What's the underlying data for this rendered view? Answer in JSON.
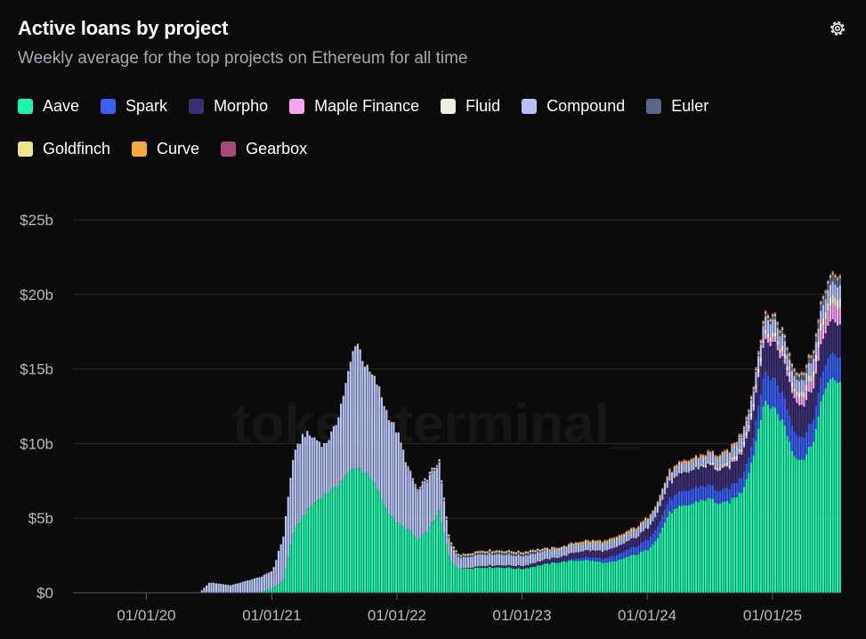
{
  "header": {
    "title": "Active loans by project",
    "subtitle": "Weekly average for the top projects on Ethereum for all time",
    "settings_icon": "gear-icon"
  },
  "watermark": "token terminal_",
  "colors": {
    "background": "#0b0b0c",
    "grid": "#2a2a2d",
    "text_muted": "#b9b9bd"
  },
  "legend": [
    {
      "name": "Aave",
      "color": "#1ef2ab"
    },
    {
      "name": "Spark",
      "color": "#3b5df0"
    },
    {
      "name": "Morpho",
      "color": "#3d2f73"
    },
    {
      "name": "Maple Finance",
      "color": "#f7a6f0"
    },
    {
      "name": "Fluid",
      "color": "#f3eee0"
    },
    {
      "name": "Compound",
      "color": "#b7c2f2"
    },
    {
      "name": "Euler",
      "color": "#5b6889"
    },
    {
      "name": "Goldfinch",
      "color": "#ede38a"
    },
    {
      "name": "Curve",
      "color": "#f7a93d"
    },
    {
      "name": "Gearbox",
      "color": "#a54a7a"
    }
  ],
  "chart_data": {
    "type": "bar",
    "stacked": true,
    "title": "Active loans by project",
    "subtitle": "Weekly average for the top projects on Ethereum for all time",
    "y_tick_labels": [
      "$0",
      "$5b",
      "$10b",
      "$15b",
      "$20b",
      "$25b"
    ],
    "y_ticks": [
      0,
      5,
      10,
      15,
      20,
      25
    ],
    "ylim": [
      0,
      25
    ],
    "y_unit": "$b",
    "x_tick_labels": [
      "01/01/20",
      "01/01/21",
      "01/01/22",
      "01/01/23",
      "01/01/24",
      "01/01/25"
    ],
    "x_ticks": [
      "2020-01-01",
      "2021-01-01",
      "2022-01-01",
      "2023-01-01",
      "2024-01-01",
      "2025-01-01"
    ],
    "x_range": [
      "2019-06-01",
      "2025-07-20"
    ],
    "grid": true,
    "legend_position": "top",
    "series_anchors": [
      {
        "name": "Aave",
        "points": [
          [
            "2020-01-01",
            0
          ],
          [
            "2020-11-01",
            0
          ],
          [
            "2020-12-01",
            0.05
          ],
          [
            "2021-01-01",
            0.3
          ],
          [
            "2021-02-01",
            0.8
          ],
          [
            "2021-03-01",
            4.0
          ],
          [
            "2021-04-01",
            5.2
          ],
          [
            "2021-05-01",
            6.0
          ],
          [
            "2021-06-01",
            6.6
          ],
          [
            "2021-07-01",
            7.0
          ],
          [
            "2021-08-01",
            7.8
          ],
          [
            "2021-09-01",
            8.5
          ],
          [
            "2021-10-01",
            8.0
          ],
          [
            "2021-11-01",
            7.0
          ],
          [
            "2021-12-01",
            5.5
          ],
          [
            "2022-01-01",
            4.6
          ],
          [
            "2022-02-01",
            4.2
          ],
          [
            "2022-03-01",
            3.5
          ],
          [
            "2022-04-01",
            4.2
          ],
          [
            "2022-05-01",
            5.5
          ],
          [
            "2022-06-01",
            2.2
          ],
          [
            "2022-07-01",
            1.6
          ],
          [
            "2022-09-01",
            1.7
          ],
          [
            "2022-11-01",
            1.7
          ],
          [
            "2023-01-01",
            1.6
          ],
          [
            "2023-03-01",
            1.9
          ],
          [
            "2023-05-01",
            2.1
          ],
          [
            "2023-07-01",
            2.2
          ],
          [
            "2023-09-01",
            2.0
          ],
          [
            "2023-10-01",
            2.1
          ],
          [
            "2023-11-01",
            2.4
          ],
          [
            "2023-12-01",
            2.6
          ],
          [
            "2024-01-01",
            2.9
          ],
          [
            "2024-02-01",
            3.8
          ],
          [
            "2024-03-01",
            5.3
          ],
          [
            "2024-04-01",
            5.7
          ],
          [
            "2024-05-01",
            5.9
          ],
          [
            "2024-06-01",
            6.2
          ],
          [
            "2024-07-01",
            6.3
          ],
          [
            "2024-08-01",
            5.9
          ],
          [
            "2024-09-01",
            6.2
          ],
          [
            "2024-10-01",
            6.8
          ],
          [
            "2024-11-01",
            9.0
          ],
          [
            "2024-12-01",
            12.6
          ],
          [
            "2025-01-01",
            12.5
          ],
          [
            "2025-02-01",
            11.3
          ],
          [
            "2025-03-01",
            9.2
          ],
          [
            "2025-04-01",
            9.0
          ],
          [
            "2025-05-01",
            10.5
          ],
          [
            "2025-06-01",
            14.0
          ],
          [
            "2025-07-01",
            14.2
          ],
          [
            "2025-07-20",
            14.3
          ]
        ]
      },
      {
        "name": "Spark",
        "points": [
          [
            "2020-01-01",
            0
          ],
          [
            "2023-05-01",
            0
          ],
          [
            "2023-06-01",
            0.15
          ],
          [
            "2023-09-01",
            0.3
          ],
          [
            "2023-12-01",
            0.55
          ],
          [
            "2024-01-01",
            0.7
          ],
          [
            "2024-03-01",
            0.9
          ],
          [
            "2024-05-01",
            1.0
          ],
          [
            "2024-08-01",
            0.85
          ],
          [
            "2024-11-01",
            1.1
          ],
          [
            "2024-12-01",
            1.9
          ],
          [
            "2025-01-01",
            2.0
          ],
          [
            "2025-03-01",
            1.7
          ],
          [
            "2025-04-01",
            1.5
          ],
          [
            "2025-06-01",
            1.6
          ],
          [
            "2025-07-20",
            1.7
          ]
        ]
      },
      {
        "name": "Morpho",
        "points": [
          [
            "2020-01-01",
            0
          ],
          [
            "2022-07-01",
            0
          ],
          [
            "2022-09-01",
            0.1
          ],
          [
            "2023-01-01",
            0.2
          ],
          [
            "2023-06-01",
            0.4
          ],
          [
            "2023-12-01",
            0.6
          ],
          [
            "2024-03-01",
            1.1
          ],
          [
            "2024-06-01",
            1.3
          ],
          [
            "2024-09-01",
            1.4
          ],
          [
            "2024-12-01",
            2.0
          ],
          [
            "2025-01-01",
            2.4
          ],
          [
            "2025-04-01",
            2.1
          ],
          [
            "2025-07-20",
            2.2
          ]
        ]
      },
      {
        "name": "Maple Finance",
        "points": [
          [
            "2020-01-01",
            0
          ],
          [
            "2024-06-01",
            0
          ],
          [
            "2024-09-01",
            0.1
          ],
          [
            "2024-12-01",
            0.3
          ],
          [
            "2025-03-01",
            0.4
          ],
          [
            "2025-05-01",
            0.8
          ],
          [
            "2025-07-20",
            1.2
          ]
        ]
      },
      {
        "name": "Fluid",
        "points": [
          [
            "2020-01-01",
            0
          ],
          [
            "2024-03-01",
            0
          ],
          [
            "2024-06-01",
            0.1
          ],
          [
            "2024-12-01",
            0.3
          ],
          [
            "2025-03-01",
            0.3
          ],
          [
            "2025-07-20",
            0.6
          ]
        ]
      },
      {
        "name": "Compound",
        "points": [
          [
            "2020-01-01",
            0
          ],
          [
            "2020-06-01",
            0
          ],
          [
            "2020-07-01",
            0.7
          ],
          [
            "2020-09-01",
            0.5
          ],
          [
            "2020-11-01",
            0.9
          ],
          [
            "2021-01-01",
            1.2
          ],
          [
            "2021-02-01",
            3.0
          ],
          [
            "2021-03-01",
            5.0
          ],
          [
            "2021-04-01",
            5.5
          ],
          [
            "2021-05-01",
            4.4
          ],
          [
            "2021-06-01",
            3.3
          ],
          [
            "2021-07-01",
            4.0
          ],
          [
            "2021-08-01",
            6.0
          ],
          [
            "2021-09-01",
            8.5
          ],
          [
            "2021-10-01",
            7.0
          ],
          [
            "2021-11-01",
            7.0
          ],
          [
            "2021-12-01",
            6.5
          ],
          [
            "2022-01-01",
            6.0
          ],
          [
            "2022-02-01",
            4.0
          ],
          [
            "2022-03-01",
            3.2
          ],
          [
            "2022-04-01",
            3.5
          ],
          [
            "2022-05-01",
            3.2
          ],
          [
            "2022-06-01",
            1.1
          ],
          [
            "2022-07-01",
            0.7
          ],
          [
            "2022-09-01",
            0.8
          ],
          [
            "2022-12-01",
            0.7
          ],
          [
            "2023-03-01",
            0.6
          ],
          [
            "2023-06-01",
            0.5
          ],
          [
            "2023-12-01",
            0.5
          ],
          [
            "2024-03-01",
            0.6
          ],
          [
            "2024-06-01",
            0.5
          ],
          [
            "2024-12-01",
            0.9
          ],
          [
            "2025-03-01",
            0.8
          ],
          [
            "2025-07-20",
            0.9
          ]
        ]
      },
      {
        "name": "Euler",
        "points": [
          [
            "2020-01-01",
            0
          ],
          [
            "2022-01-01",
            0
          ],
          [
            "2022-03-01",
            0.05
          ],
          [
            "2022-06-01",
            0.1
          ],
          [
            "2023-02-01",
            0.15
          ],
          [
            "2023-03-15",
            0
          ],
          [
            "2024-09-01",
            0
          ],
          [
            "2024-11-01",
            0.1
          ],
          [
            "2025-03-01",
            0.3
          ],
          [
            "2025-07-20",
            0.5
          ]
        ]
      },
      {
        "name": "Goldfinch",
        "points": [
          [
            "2020-01-01",
            0
          ],
          [
            "2021-06-01",
            0
          ],
          [
            "2021-09-01",
            0.05
          ],
          [
            "2022-06-01",
            0.1
          ],
          [
            "2023-06-01",
            0.1
          ],
          [
            "2024-06-01",
            0.08
          ],
          [
            "2025-07-20",
            0.06
          ]
        ]
      },
      {
        "name": "Curve",
        "points": [
          [
            "2020-01-01",
            0
          ],
          [
            "2023-05-01",
            0
          ],
          [
            "2023-06-01",
            0.05
          ],
          [
            "2023-12-01",
            0.08
          ],
          [
            "2024-06-01",
            0.08
          ],
          [
            "2025-07-20",
            0.1
          ]
        ]
      },
      {
        "name": "Gearbox",
        "points": [
          [
            "2020-01-01",
            0
          ],
          [
            "2021-12-01",
            0
          ],
          [
            "2022-02-01",
            0.05
          ],
          [
            "2023-01-01",
            0.05
          ],
          [
            "2024-01-01",
            0.06
          ],
          [
            "2025-07-20",
            0.08
          ]
        ]
      }
    ]
  }
}
